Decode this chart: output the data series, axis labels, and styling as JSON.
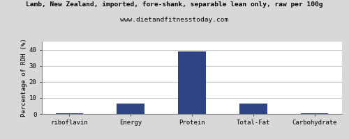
{
  "title_line1": "Lamb, New Zealand, imported, fore-shank, separable lean only, raw per 100g",
  "title_line2": "www.dietandfitnesstoday.com",
  "categories": [
    "riboflavin",
    "Energy",
    "Protein",
    "Total-Fat",
    "Carbohydrate"
  ],
  "values": [
    0.5,
    6.5,
    39.0,
    6.5,
    0.5
  ],
  "bar_color": "#2e4482",
  "ylabel": "Percentage of RDH (%)",
  "ylim": [
    0,
    45
  ],
  "yticks": [
    0,
    10,
    20,
    30,
    40
  ],
  "background_color": "#d8d8d8",
  "plot_bg_color": "#ffffff",
  "title_fontsize": 6.8,
  "subtitle_fontsize": 6.8,
  "ylabel_fontsize": 6.5,
  "tick_fontsize": 6.5,
  "grid_color": "#cccccc",
  "bar_width": 0.45
}
